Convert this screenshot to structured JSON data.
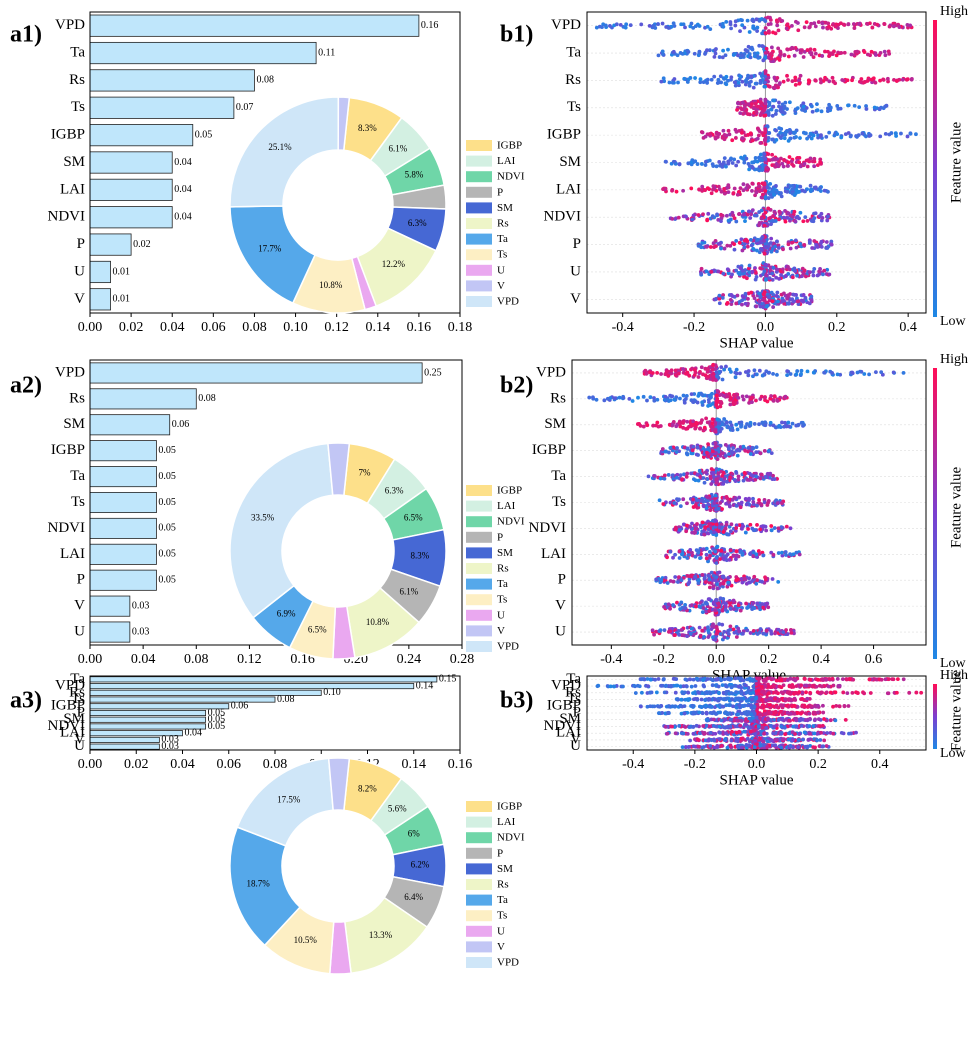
{
  "colors": {
    "bar_fill": "#bfe6fb",
    "bar_stroke": "#222222",
    "shap_low": "#1e88e5",
    "shap_high": "#ff0d57",
    "features": {
      "IGBP": "#fde08a",
      "LAI": "#d3f0e2",
      "NDVI": "#6fd6a8",
      "P": "#b5b5b5",
      "SM": "#4668d4",
      "Rs": "#eef5c8",
      "Ta": "#55a8ea",
      "Ts": "#fdefc4",
      "U": "#eaa8f0",
      "V": "#c2c6f5",
      "VPD": "#cfe6f8"
    }
  },
  "legend_order": [
    "IGBP",
    "LAI",
    "NDVI",
    "P",
    "SM",
    "Rs",
    "Ta",
    "Ts",
    "U",
    "V",
    "VPD"
  ],
  "colorbar": {
    "title": "Feature value",
    "high": "High",
    "low": "Low"
  },
  "chart_data": [
    {
      "panel": "a1)",
      "type": "bar",
      "orientation": "horizontal",
      "categories": [
        "VPD",
        "Ta",
        "Rs",
        "Ts",
        "IGBP",
        "SM",
        "LAI",
        "NDVI",
        "P",
        "U",
        "V"
      ],
      "values": [
        0.16,
        0.11,
        0.08,
        0.07,
        0.05,
        0.04,
        0.04,
        0.04,
        0.02,
        0.01,
        0.01
      ],
      "value_labels": [
        "0.16",
        "0.11",
        "0.08",
        "0.07",
        "0.05",
        "0.04",
        "0.04",
        "0.04",
        "0.02",
        "0.01",
        "0.01"
      ],
      "xlim": [
        0,
        0.18
      ],
      "xticks": [
        "0.00",
        "0.02",
        "0.04",
        "0.06",
        "0.08",
        "0.10",
        "0.12",
        "0.14",
        "0.16",
        "0.18"
      ],
      "pie": {
        "type": "pie",
        "labels": [
          "IGBP",
          "LAI",
          "NDVI",
          "P",
          "SM",
          "Rs",
          "U",
          "Ts",
          "Ta",
          "VPD",
          "V"
        ],
        "values": [
          8.3,
          6.1,
          5.8,
          3.5,
          6.3,
          12.2,
          1.7,
          10.8,
          17.7,
          25.1,
          1.6
        ],
        "pct_labels": [
          "8.3%",
          "6.1%",
          "5.8%",
          "",
          "6.3%",
          "12.2%",
          "",
          "10.8%",
          "17.7%",
          "25.1%",
          ""
        ]
      }
    },
    {
      "panel": "a2)",
      "type": "bar",
      "orientation": "horizontal",
      "categories": [
        "VPD",
        "Rs",
        "SM",
        "IGBP",
        "Ta",
        "Ts",
        "NDVI",
        "LAI",
        "P",
        "V",
        "U"
      ],
      "values": [
        0.25,
        0.08,
        0.06,
        0.05,
        0.05,
        0.05,
        0.05,
        0.05,
        0.05,
        0.03,
        0.03
      ],
      "value_labels": [
        "0.25",
        "0.08",
        "0.06",
        "0.05",
        "0.05",
        "0.05",
        "0.05",
        "0.05",
        "0.05",
        "0.03",
        "0.03"
      ],
      "xlim": [
        0,
        0.28
      ],
      "xticks": [
        "0.00",
        "0.04",
        "0.08",
        "0.12",
        "0.16",
        "0.20",
        "0.24",
        "0.28"
      ],
      "pie": {
        "type": "pie",
        "labels": [
          "IGBP",
          "LAI",
          "NDVI",
          "SM",
          "P",
          "Rs",
          "U",
          "Ts",
          "Ta",
          "VPD",
          "V"
        ],
        "values": [
          7.0,
          6.3,
          6.5,
          8.3,
          6.1,
          10.8,
          3.2,
          6.5,
          6.9,
          33.5,
          3.1
        ],
        "pct_labels": [
          "7%",
          "6.3%",
          "6.5%",
          "8.3%",
          "6.1%",
          "10.8%",
          "",
          "6.5%",
          "6.9%",
          "33.5%",
          ""
        ]
      }
    },
    {
      "panel": "a3)",
      "type": "bar",
      "orientation": "horizontal",
      "categories": [
        "Ta",
        "VPD",
        "Rs",
        "Ts",
        "IGBP",
        "P",
        "SM",
        "NDVI",
        "LAI",
        "V",
        "U"
      ],
      "values": [
        0.15,
        0.14,
        0.1,
        0.08,
        0.06,
        0.05,
        0.05,
        0.05,
        0.04,
        0.03,
        0.03
      ],
      "value_labels": [
        "0.15",
        "0.14",
        "0.10",
        "0.08",
        "0.06",
        "0.05",
        "0.05",
        "0.05",
        "0.04",
        "0.03",
        "0.03"
      ],
      "xlim": [
        0,
        0.16
      ],
      "xticks": [
        "0.00",
        "0.02",
        "0.04",
        "0.06",
        "0.08",
        "0.10",
        "0.12",
        "0.14",
        "0.16"
      ],
      "pie": {
        "type": "pie",
        "labels": [
          "IGBP",
          "LAI",
          "NDVI",
          "SM",
          "P",
          "Rs",
          "U",
          "Ts",
          "Ta",
          "VPD",
          "V"
        ],
        "values": [
          8.2,
          5.6,
          6.0,
          6.2,
          6.4,
          13.3,
          3.1,
          10.5,
          18.7,
          17.5,
          3.0
        ],
        "pct_labels": [
          "8.2%",
          "5.6%",
          "6%",
          "6.2%",
          "6.4%",
          "13.3%",
          "",
          "10.5%",
          "18.7%",
          "17.5%",
          ""
        ]
      }
    },
    {
      "panel": "b1)",
      "type": "scatter",
      "subtype": "shap-beeswarm",
      "features": [
        "VPD",
        "Ta",
        "Rs",
        "Ts",
        "IGBP",
        "SM",
        "LAI",
        "NDVI",
        "P",
        "U",
        "V"
      ],
      "xlabel": "SHAP value",
      "xlim": [
        -0.5,
        0.45
      ],
      "xticks": [
        -0.4,
        -0.2,
        0.0,
        0.2,
        0.4
      ],
      "xtick_labels": [
        "-0.4",
        "-0.2",
        "0.0",
        "0.2",
        "0.4"
      ],
      "ranges": [
        [
          -0.48,
          0.42
        ],
        [
          -0.3,
          0.35
        ],
        [
          -0.32,
          0.44
        ],
        [
          -0.08,
          0.34
        ],
        [
          -0.18,
          0.43
        ],
        [
          -0.28,
          0.16
        ],
        [
          -0.3,
          0.18
        ],
        [
          -0.27,
          0.18
        ],
        [
          -0.19,
          0.2
        ],
        [
          -0.19,
          0.18
        ],
        [
          -0.15,
          0.13
        ]
      ],
      "low_side": [
        "left",
        "left",
        "left",
        "right",
        "right",
        "left",
        "right",
        "mixed",
        "mixed",
        "mixed",
        "mixed"
      ]
    },
    {
      "panel": "b2)",
      "type": "scatter",
      "subtype": "shap-beeswarm",
      "features": [
        "VPD",
        "Rs",
        "SM",
        "IGBP",
        "Ta",
        "Ts",
        "NDVI",
        "LAI",
        "P",
        "V",
        "U"
      ],
      "xlabel": "SHAP value",
      "xlim": [
        -0.55,
        0.8
      ],
      "xticks": [
        -0.4,
        -0.2,
        0.0,
        0.2,
        0.4,
        0.6
      ],
      "xtick_labels": [
        "-0.4",
        "-0.2",
        "0.0",
        "0.2",
        "0.4",
        "0.6"
      ],
      "ranges": [
        [
          -0.28,
          0.74
        ],
        [
          -0.5,
          0.27
        ],
        [
          -0.3,
          0.34
        ],
        [
          -0.22,
          0.22
        ],
        [
          -0.26,
          0.24
        ],
        [
          -0.22,
          0.26
        ],
        [
          -0.16,
          0.3
        ],
        [
          -0.2,
          0.32
        ],
        [
          -0.23,
          0.24
        ],
        [
          -0.2,
          0.2
        ],
        [
          -0.25,
          0.3
        ]
      ],
      "low_side": [
        "right",
        "left",
        "right",
        "mixed",
        "mixed",
        "mixed",
        "mixed",
        "mixed",
        "mixed",
        "mixed",
        "mixed"
      ]
    },
    {
      "panel": "b3)",
      "type": "scatter",
      "subtype": "shap-beeswarm",
      "features": [
        "Ta",
        "VPD",
        "Rs",
        "Ts",
        "IGBP",
        "P",
        "SM",
        "NDVI",
        "LAI",
        "V",
        "U"
      ],
      "xlabel": "SHAP value",
      "xlim": [
        -0.55,
        0.55
      ],
      "xticks": [
        -0.4,
        -0.2,
        0.0,
        0.2,
        0.4
      ],
      "xtick_labels": [
        "-0.4",
        "-0.2",
        "0.0",
        "0.2",
        "0.4"
      ],
      "ranges": [
        [
          -0.38,
          0.48
        ],
        [
          -0.52,
          0.28
        ],
        [
          -0.4,
          0.54
        ],
        [
          -0.28,
          0.18
        ],
        [
          -0.38,
          0.3
        ],
        [
          -0.32,
          0.22
        ],
        [
          -0.17,
          0.3
        ],
        [
          -0.3,
          0.22
        ],
        [
          -0.3,
          0.33
        ],
        [
          -0.22,
          0.22
        ],
        [
          -0.24,
          0.24
        ]
      ],
      "low_side": [
        "left",
        "left",
        "left",
        "left",
        "left",
        "left",
        "mixed",
        "mixed",
        "mixed",
        "mixed",
        "mixed"
      ]
    }
  ]
}
